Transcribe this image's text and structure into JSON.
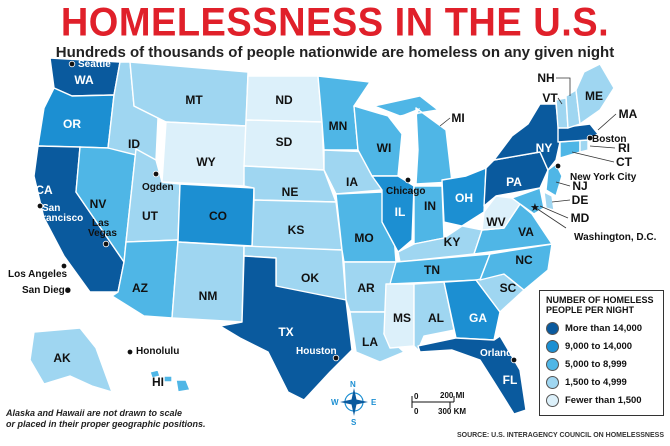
{
  "title": "HOMELESSNESS IN THE U.S.",
  "subtitle": "Hundreds of thousands of people nationwide are homeless on any given night",
  "colors": {
    "c1": "#0a5a9e",
    "c2": "#1c8fd2",
    "c3": "#4fb6e6",
    "c4": "#9fd6f1",
    "c5": "#dcf0fa"
  },
  "legend": {
    "title_line1": "NUMBER OF HOMELESS",
    "title_line2": "PEOPLE PER NIGHT",
    "items": [
      {
        "label": "More than 14,000",
        "color": "#0a5a9e"
      },
      {
        "label": "9,000 to 14,000",
        "color": "#1c8fd2"
      },
      {
        "label": "5,000 to 8,999",
        "color": "#4fb6e6"
      },
      {
        "label": "1,500 to 4,999",
        "color": "#9fd6f1"
      },
      {
        "label": "Fewer than 1,500",
        "color": "#dcf0fa"
      }
    ]
  },
  "states": {
    "WA": "WA",
    "OR": "OR",
    "CA": "CA",
    "NV": "NV",
    "ID": "ID",
    "MT": "MT",
    "WY": "WY",
    "UT": "UT",
    "AZ": "AZ",
    "CO": "CO",
    "NM": "NM",
    "ND": "ND",
    "SD": "SD",
    "NE": "NE",
    "KS": "KS",
    "OK": "OK",
    "TX": "TX",
    "MN": "MN",
    "IA": "IA",
    "MO": "MO",
    "AR": "AR",
    "LA": "LA",
    "WI": "WI",
    "IL": "IL",
    "MI": "MI",
    "IN": "IN",
    "OH": "OH",
    "KY": "KY",
    "TN": "TN",
    "MS": "MS",
    "AL": "AL",
    "GA": "GA",
    "FL": "FL",
    "SC": "SC",
    "NC": "NC",
    "VA": "VA",
    "WV": "WV",
    "PA": "PA",
    "NY": "NY",
    "ME": "ME",
    "AK": "AK",
    "HI": "HI",
    "NH": "NH",
    "VT": "VT",
    "MA": "MA",
    "RI": "RI",
    "CT": "CT",
    "NJ": "NJ",
    "DE": "DE",
    "MD": "MD"
  },
  "cities": {
    "seattle": "Seattle",
    "san_francisco_1": "San",
    "san_francisco_2": "Francisco",
    "los_angeles": "Los Angeles",
    "san_diego": "San Diego",
    "las_vegas_1": "Las",
    "las_vegas_2": "Vegas",
    "ogden": "Ogden",
    "houston": "Houston",
    "chicago": "Chicago",
    "orlando": "Orlando",
    "boston": "Boston",
    "new_york_city": "New York City",
    "washington_dc": "Washington, D.C.",
    "honolulu": "Honolulu"
  },
  "compass": {
    "n": "N",
    "s": "S",
    "e": "E",
    "w": "W"
  },
  "scale": {
    "mi_0": "0",
    "mi_200": "200 MI",
    "km_0": "0",
    "km_300": "300 KM"
  },
  "note_line1": "Alaska and Hawaii are not drawn to scale",
  "note_line2": "or placed in their proper geographic positions.",
  "source": "SOURCE: U.S. INTERAGENCY COUNCIL ON HOMELESSNESS"
}
